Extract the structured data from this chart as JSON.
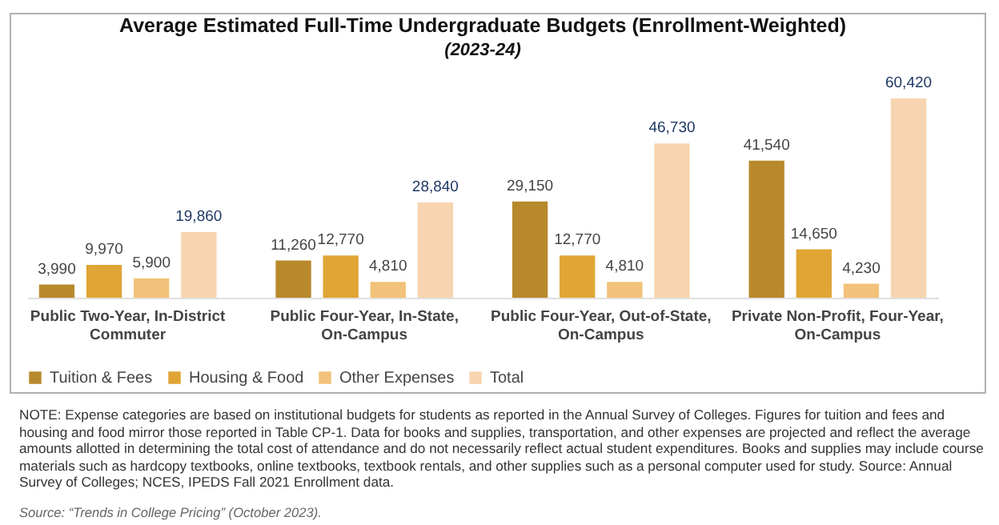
{
  "chart_data": {
    "type": "bar",
    "title": "Average Estimated Full-Time Undergraduate Budgets (Enrollment-Weighted)",
    "subtitle": "(2023-24)",
    "categories": [
      "Public Two-Year, In-District Commuter",
      "Public Four-Year, In-State, On-Campus",
      "Public Four-Year, Out-of-State, On-Campus",
      "Private Non-Profit, Four-Year, On-Campus"
    ],
    "series": [
      {
        "name": "Tuition & Fees",
        "color": "#b8892c",
        "values": [
          3990,
          11260,
          29150,
          41540
        ],
        "value_labels": [
          "3,990",
          "11,260",
          "29,150",
          "41,540"
        ]
      },
      {
        "name": "Housing & Food",
        "color": "#e0a535",
        "values": [
          9970,
          12770,
          12770,
          14650
        ],
        "value_labels": [
          "9,970",
          "12,770",
          "12,770",
          "14,650"
        ]
      },
      {
        "name": "Other Expenses",
        "color": "#f2c27a",
        "values": [
          5900,
          4810,
          4810,
          4230
        ],
        "value_labels": [
          "5,900",
          "4,810",
          "4,810",
          "4,230"
        ]
      },
      {
        "name": "Total",
        "color": "#f7d5b0",
        "values": [
          19860,
          28840,
          46730,
          60420
        ],
        "value_labels": [
          "19,860",
          "28,840",
          "46,730",
          "60,420"
        ]
      }
    ],
    "tick_labels": "x",
    "legend": "bottom",
    "grid": false,
    "annotations": [
      "NOTE: Expense categories are based on institutional budgets for students as reported in the Annual Survey of Colleges. Figures for tuition and fees and housing and food mirror those reported in Table CP-1. Data for books and supplies, transportation, and other expenses are projected and reflect the average amounts allotted in determining the total cost of attendance and do not necessarily reflect actual student expenditures. Books and supplies may include course materials such as hardcopy textbooks, online textbooks, textbook rentals, and other supplies such as a personal computer used for study. Source: Annual Survey of Colleges; NCES, IPEDS Fall 2021 Enrollment data.",
      "Source: “Trends in College Pricing” (October 2023)."
    ]
  }
}
